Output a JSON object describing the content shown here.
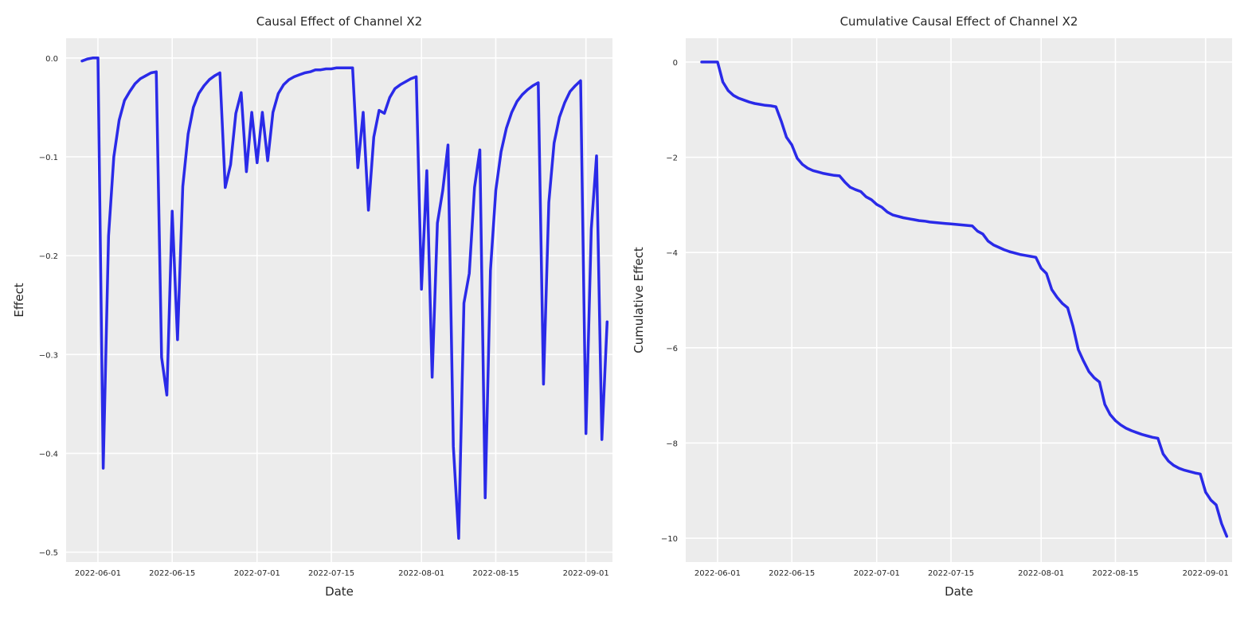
{
  "chart_data": [
    {
      "type": "line",
      "title": "Causal Effect of Channel X2",
      "xlabel": "Date",
      "ylabel": "Effect",
      "x_tick_labels": [
        "2022-06-01",
        "2022-06-15",
        "2022-07-01",
        "2022-07-15",
        "2022-08-01",
        "2022-08-15",
        "2022-09-01"
      ],
      "y_tick_labels": [
        "0.0",
        "−0.1",
        "−0.2",
        "−0.3",
        "−0.4",
        "−0.5"
      ],
      "yticks": [
        0.0,
        -0.1,
        -0.2,
        -0.3,
        -0.4,
        -0.5
      ],
      "ylim": [
        -0.51,
        0.02
      ],
      "xlim": [
        "2022-05-26",
        "2022-09-06"
      ],
      "grid": true,
      "series": [
        {
          "color": "#2a2ae8",
          "points": [
            [
              "2022-05-29",
              -0.003
            ],
            [
              "2022-05-30",
              -0.001
            ],
            [
              "2022-05-31",
              0.0
            ],
            [
              "2022-06-01",
              0.0
            ],
            [
              "2022-06-02",
              -0.415
            ],
            [
              "2022-06-03",
              -0.18
            ],
            [
              "2022-06-04",
              -0.1
            ],
            [
              "2022-06-05",
              -0.063
            ],
            [
              "2022-06-06",
              -0.043
            ],
            [
              "2022-06-07",
              -0.034
            ],
            [
              "2022-06-08",
              -0.026
            ],
            [
              "2022-06-09",
              -0.021
            ],
            [
              "2022-06-10",
              -0.018
            ],
            [
              "2022-06-11",
              -0.015
            ],
            [
              "2022-06-12",
              -0.014
            ],
            [
              "2022-06-13",
              -0.303
            ],
            [
              "2022-06-14",
              -0.341
            ],
            [
              "2022-06-15",
              -0.155
            ],
            [
              "2022-06-16",
              -0.285
            ],
            [
              "2022-06-17",
              -0.13
            ],
            [
              "2022-06-18",
              -0.077
            ],
            [
              "2022-06-19",
              -0.05
            ],
            [
              "2022-06-20",
              -0.036
            ],
            [
              "2022-06-21",
              -0.028
            ],
            [
              "2022-06-22",
              -0.022
            ],
            [
              "2022-06-23",
              -0.018
            ],
            [
              "2022-06-24",
              -0.015
            ],
            [
              "2022-06-25",
              -0.131
            ],
            [
              "2022-06-26",
              -0.108
            ],
            [
              "2022-06-27",
              -0.056
            ],
            [
              "2022-06-28",
              -0.035
            ],
            [
              "2022-06-29",
              -0.115
            ],
            [
              "2022-06-30",
              -0.055
            ],
            [
              "2022-07-01",
              -0.106
            ],
            [
              "2022-07-02",
              -0.055
            ],
            [
              "2022-07-03",
              -0.104
            ],
            [
              "2022-07-04",
              -0.055
            ],
            [
              "2022-07-05",
              -0.036
            ],
            [
              "2022-07-06",
              -0.027
            ],
            [
              "2022-07-07",
              -0.022
            ],
            [
              "2022-07-08",
              -0.019
            ],
            [
              "2022-07-09",
              -0.017
            ],
            [
              "2022-07-10",
              -0.015
            ],
            [
              "2022-07-11",
              -0.014
            ],
            [
              "2022-07-12",
              -0.012
            ],
            [
              "2022-07-13",
              -0.012
            ],
            [
              "2022-07-14",
              -0.011
            ],
            [
              "2022-07-15",
              -0.011
            ],
            [
              "2022-07-16",
              -0.01
            ],
            [
              "2022-07-17",
              -0.01
            ],
            [
              "2022-07-18",
              -0.01
            ],
            [
              "2022-07-19",
              -0.01
            ],
            [
              "2022-07-20",
              -0.111
            ],
            [
              "2022-07-21",
              -0.055
            ],
            [
              "2022-07-22",
              -0.154
            ],
            [
              "2022-07-23",
              -0.08
            ],
            [
              "2022-07-24",
              -0.053
            ],
            [
              "2022-07-25",
              -0.056
            ],
            [
              "2022-07-26",
              -0.04
            ],
            [
              "2022-07-27",
              -0.031
            ],
            [
              "2022-07-28",
              -0.027
            ],
            [
              "2022-07-29",
              -0.024
            ],
            [
              "2022-07-30",
              -0.021
            ],
            [
              "2022-07-31",
              -0.019
            ],
            [
              "2022-08-01",
              -0.234
            ],
            [
              "2022-08-02",
              -0.114
            ],
            [
              "2022-08-03",
              -0.323
            ],
            [
              "2022-08-04",
              -0.167
            ],
            [
              "2022-08-05",
              -0.134
            ],
            [
              "2022-08-06",
              -0.088
            ],
            [
              "2022-08-07",
              -0.393
            ],
            [
              "2022-08-08",
              -0.486
            ],
            [
              "2022-08-09",
              -0.248
            ],
            [
              "2022-08-10",
              -0.218
            ],
            [
              "2022-08-11",
              -0.131
            ],
            [
              "2022-08-12",
              -0.093
            ],
            [
              "2022-08-13",
              -0.445
            ],
            [
              "2022-08-14",
              -0.215
            ],
            [
              "2022-08-15",
              -0.134
            ],
            [
              "2022-08-16",
              -0.095
            ],
            [
              "2022-08-17",
              -0.071
            ],
            [
              "2022-08-18",
              -0.055
            ],
            [
              "2022-08-19",
              -0.044
            ],
            [
              "2022-08-20",
              -0.037
            ],
            [
              "2022-08-21",
              -0.032
            ],
            [
              "2022-08-22",
              -0.028
            ],
            [
              "2022-08-23",
              -0.025
            ],
            [
              "2022-08-24",
              -0.33
            ],
            [
              "2022-08-25",
              -0.146
            ],
            [
              "2022-08-26",
              -0.086
            ],
            [
              "2022-08-27",
              -0.06
            ],
            [
              "2022-08-28",
              -0.045
            ],
            [
              "2022-08-29",
              -0.034
            ],
            [
              "2022-08-30",
              -0.028
            ],
            [
              "2022-08-31",
              -0.023
            ],
            [
              "2022-09-01",
              -0.38
            ],
            [
              "2022-09-02",
              -0.173
            ],
            [
              "2022-09-03",
              -0.099
            ],
            [
              "2022-09-04",
              -0.386
            ],
            [
              "2022-09-05",
              -0.267
            ]
          ]
        }
      ]
    },
    {
      "type": "line",
      "title": "Cumulative Causal Effect of Channel X2",
      "xlabel": "Date",
      "ylabel": "Cumulative Effect",
      "x_tick_labels": [
        "2022-06-01",
        "2022-06-15",
        "2022-07-01",
        "2022-07-15",
        "2022-08-01",
        "2022-08-15",
        "2022-09-01"
      ],
      "y_tick_labels": [
        "0",
        "−2",
        "−4",
        "−6",
        "−8",
        "−10"
      ],
      "yticks": [
        0,
        -2,
        -4,
        -6,
        -8,
        -10
      ],
      "ylim": [
        -10.5,
        0.5
      ],
      "xlim": [
        "2022-05-26",
        "2022-09-06"
      ],
      "grid": true,
      "series": [
        {
          "color": "#2a2ae8",
          "points": [
            [
              "2022-05-29",
              0.0
            ],
            [
              "2022-05-30",
              0.0
            ],
            [
              "2022-05-31",
              0.0
            ],
            [
              "2022-06-01",
              0.0
            ],
            [
              "2022-06-02",
              -0.42
            ],
            [
              "2022-06-03",
              -0.6
            ],
            [
              "2022-06-04",
              -0.7
            ],
            [
              "2022-06-05",
              -0.76
            ],
            [
              "2022-06-06",
              -0.8
            ],
            [
              "2022-06-07",
              -0.84
            ],
            [
              "2022-06-08",
              -0.87
            ],
            [
              "2022-06-09",
              -0.89
            ],
            [
              "2022-06-10",
              -0.91
            ],
            [
              "2022-06-11",
              -0.92
            ],
            [
              "2022-06-12",
              -0.94
            ],
            [
              "2022-06-13",
              -1.24
            ],
            [
              "2022-06-14",
              -1.58
            ],
            [
              "2022-06-15",
              -1.74
            ],
            [
              "2022-06-16",
              -2.02
            ],
            [
              "2022-06-17",
              -2.15
            ],
            [
              "2022-06-18",
              -2.23
            ],
            [
              "2022-06-19",
              -2.28
            ],
            [
              "2022-06-20",
              -2.31
            ],
            [
              "2022-06-21",
              -2.34
            ],
            [
              "2022-06-22",
              -2.36
            ],
            [
              "2022-06-23",
              -2.38
            ],
            [
              "2022-06-24",
              -2.39
            ],
            [
              "2022-06-25",
              -2.52
            ],
            [
              "2022-06-26",
              -2.63
            ],
            [
              "2022-06-27",
              -2.68
            ],
            [
              "2022-06-28",
              -2.72
            ],
            [
              "2022-06-29",
              -2.83
            ],
            [
              "2022-06-30",
              -2.89
            ],
            [
              "2022-07-01",
              -2.99
            ],
            [
              "2022-07-02",
              -3.05
            ],
            [
              "2022-07-03",
              -3.15
            ],
            [
              "2022-07-04",
              -3.21
            ],
            [
              "2022-07-05",
              -3.24
            ],
            [
              "2022-07-06",
              -3.27
            ],
            [
              "2022-07-07",
              -3.29
            ],
            [
              "2022-07-08",
              -3.31
            ],
            [
              "2022-07-09",
              -3.33
            ],
            [
              "2022-07-10",
              -3.34
            ],
            [
              "2022-07-11",
              -3.36
            ],
            [
              "2022-07-12",
              -3.37
            ],
            [
              "2022-07-13",
              -3.38
            ],
            [
              "2022-07-14",
              -3.39
            ],
            [
              "2022-07-15",
              -3.4
            ],
            [
              "2022-07-16",
              -3.41
            ],
            [
              "2022-07-17",
              -3.42
            ],
            [
              "2022-07-18",
              -3.43
            ],
            [
              "2022-07-19",
              -3.44
            ],
            [
              "2022-07-20",
              -3.55
            ],
            [
              "2022-07-21",
              -3.61
            ],
            [
              "2022-07-22",
              -3.76
            ],
            [
              "2022-07-23",
              -3.84
            ],
            [
              "2022-07-24",
              -3.89
            ],
            [
              "2022-07-25",
              -3.94
            ],
            [
              "2022-07-26",
              -3.98
            ],
            [
              "2022-07-27",
              -4.01
            ],
            [
              "2022-07-28",
              -4.04
            ],
            [
              "2022-07-29",
              -4.06
            ],
            [
              "2022-07-30",
              -4.08
            ],
            [
              "2022-07-31",
              -4.1
            ],
            [
              "2022-08-01",
              -4.33
            ],
            [
              "2022-08-02",
              -4.44
            ],
            [
              "2022-08-03",
              -4.78
            ],
            [
              "2022-08-04",
              -4.94
            ],
            [
              "2022-08-05",
              -5.07
            ],
            [
              "2022-08-06",
              -5.16
            ],
            [
              "2022-08-07",
              -5.55
            ],
            [
              "2022-08-08",
              -6.04
            ],
            [
              "2022-08-09",
              -6.28
            ],
            [
              "2022-08-10",
              -6.5
            ],
            [
              "2022-08-11",
              -6.63
            ],
            [
              "2022-08-12",
              -6.72
            ],
            [
              "2022-08-13",
              -7.19
            ],
            [
              "2022-08-14",
              -7.4
            ],
            [
              "2022-08-15",
              -7.53
            ],
            [
              "2022-08-16",
              -7.62
            ],
            [
              "2022-08-17",
              -7.69
            ],
            [
              "2022-08-18",
              -7.74
            ],
            [
              "2022-08-19",
              -7.78
            ],
            [
              "2022-08-20",
              -7.82
            ],
            [
              "2022-08-21",
              -7.85
            ],
            [
              "2022-08-22",
              -7.88
            ],
            [
              "2022-08-23",
              -7.9
            ],
            [
              "2022-08-24",
              -8.23
            ],
            [
              "2022-08-25",
              -8.38
            ],
            [
              "2022-08-26",
              -8.47
            ],
            [
              "2022-08-27",
              -8.53
            ],
            [
              "2022-08-28",
              -8.57
            ],
            [
              "2022-08-29",
              -8.6
            ],
            [
              "2022-08-30",
              -8.63
            ],
            [
              "2022-08-31",
              -8.65
            ],
            [
              "2022-09-01",
              -9.03
            ],
            [
              "2022-09-02",
              -9.2
            ],
            [
              "2022-09-03",
              -9.3
            ],
            [
              "2022-09-04",
              -9.69
            ],
            [
              "2022-09-05",
              -9.96
            ]
          ]
        }
      ]
    }
  ]
}
